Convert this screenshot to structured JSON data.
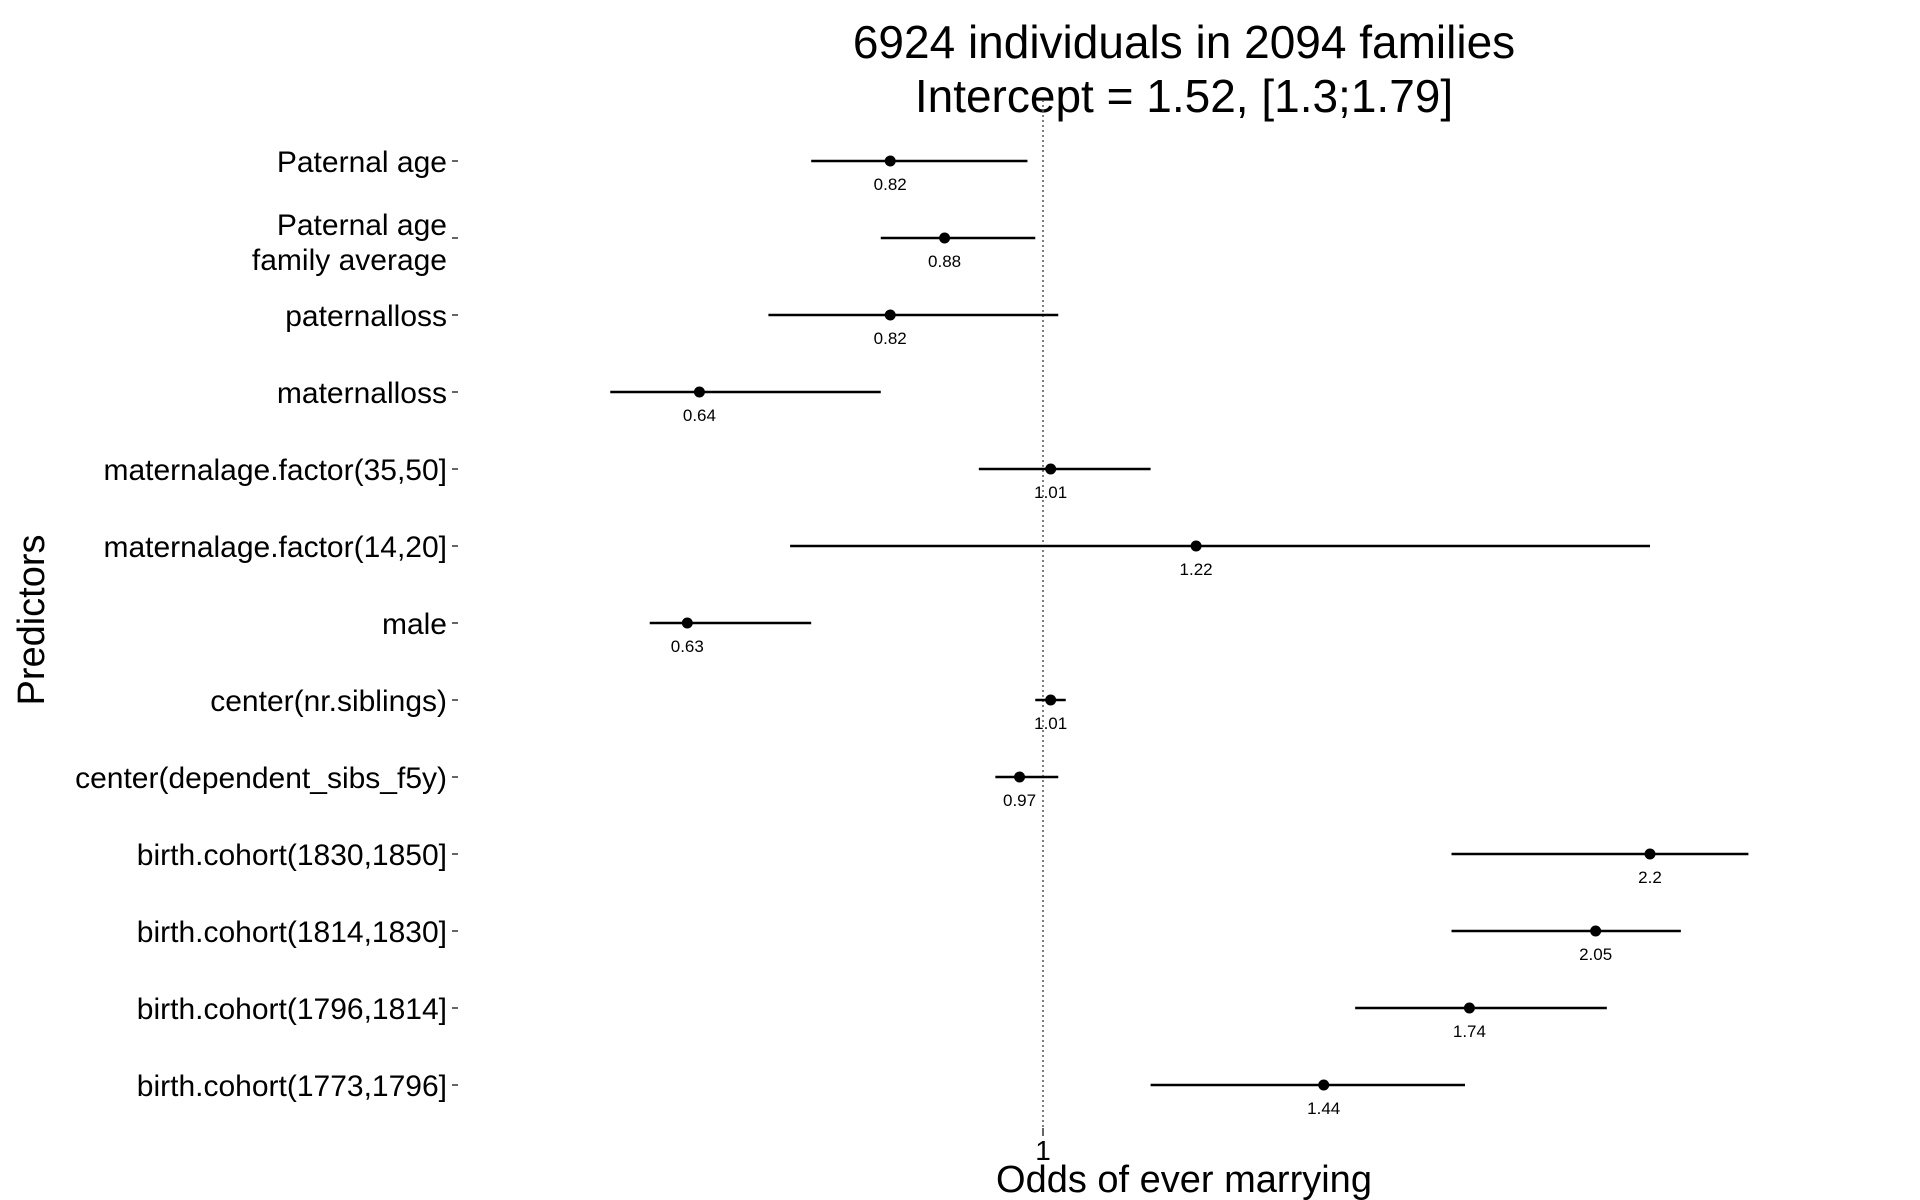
{
  "chart_data": {
    "type": "forest",
    "title": [
      "6924 individuals in 2094 families",
      "Intercept = 1.52, [1.3;1.79]"
    ],
    "xlabel": "Odds of ever marrying",
    "ylabel": "Predictors",
    "x_scale": "log",
    "xlim": [
      0.56,
      2.5
    ],
    "reference_line": 1,
    "x_ticks": [
      {
        "value": 1,
        "label": "1"
      }
    ],
    "grid": false,
    "rows": [
      {
        "label": [
          "Paternal age"
        ],
        "estimate": 0.82,
        "lower": 0.74,
        "upper": 0.98,
        "value_label": "0.82"
      },
      {
        "label": [
          "Paternal age",
          "family average"
        ],
        "estimate": 0.88,
        "lower": 0.81,
        "upper": 0.99,
        "value_label": "0.88"
      },
      {
        "label": [
          "paternalloss"
        ],
        "estimate": 0.82,
        "lower": 0.7,
        "upper": 1.02,
        "value_label": "0.82"
      },
      {
        "label": [
          "maternalloss"
        ],
        "estimate": 0.64,
        "lower": 0.57,
        "upper": 0.81,
        "value_label": "0.64"
      },
      {
        "label": [
          "maternalage.factor(35,50]"
        ],
        "estimate": 1.01,
        "lower": 0.92,
        "upper": 1.15,
        "value_label": "1.01"
      },
      {
        "label": [
          "maternalage.factor(14,20]"
        ],
        "estimate": 1.22,
        "lower": 0.72,
        "upper": 2.2,
        "value_label": "1.22"
      },
      {
        "label": [
          "male"
        ],
        "estimate": 0.63,
        "lower": 0.6,
        "upper": 0.74,
        "value_label": "0.63"
      },
      {
        "label": [
          "center(nr.siblings)"
        ],
        "estimate": 1.01,
        "lower": 0.99,
        "upper": 1.03,
        "value_label": "1.01"
      },
      {
        "label": [
          "center(dependent_sibs_f5y)"
        ],
        "estimate": 0.97,
        "lower": 0.94,
        "upper": 1.02,
        "value_label": "0.97"
      },
      {
        "label": [
          "birth.cohort(1830,1850]"
        ],
        "estimate": 2.2,
        "lower": 1.7,
        "upper": 2.5,
        "value_label": "2.2"
      },
      {
        "label": [
          "birth.cohort(1814,1830]"
        ],
        "estimate": 2.05,
        "lower": 1.7,
        "upper": 2.29,
        "value_label": "2.05"
      },
      {
        "label": [
          "birth.cohort(1796,1814]"
        ],
        "estimate": 1.74,
        "lower": 1.5,
        "upper": 2.08,
        "value_label": "1.74"
      },
      {
        "label": [
          "birth.cohort(1773,1796]"
        ],
        "estimate": 1.44,
        "lower": 1.15,
        "upper": 1.73,
        "value_label": "1.44"
      }
    ]
  }
}
